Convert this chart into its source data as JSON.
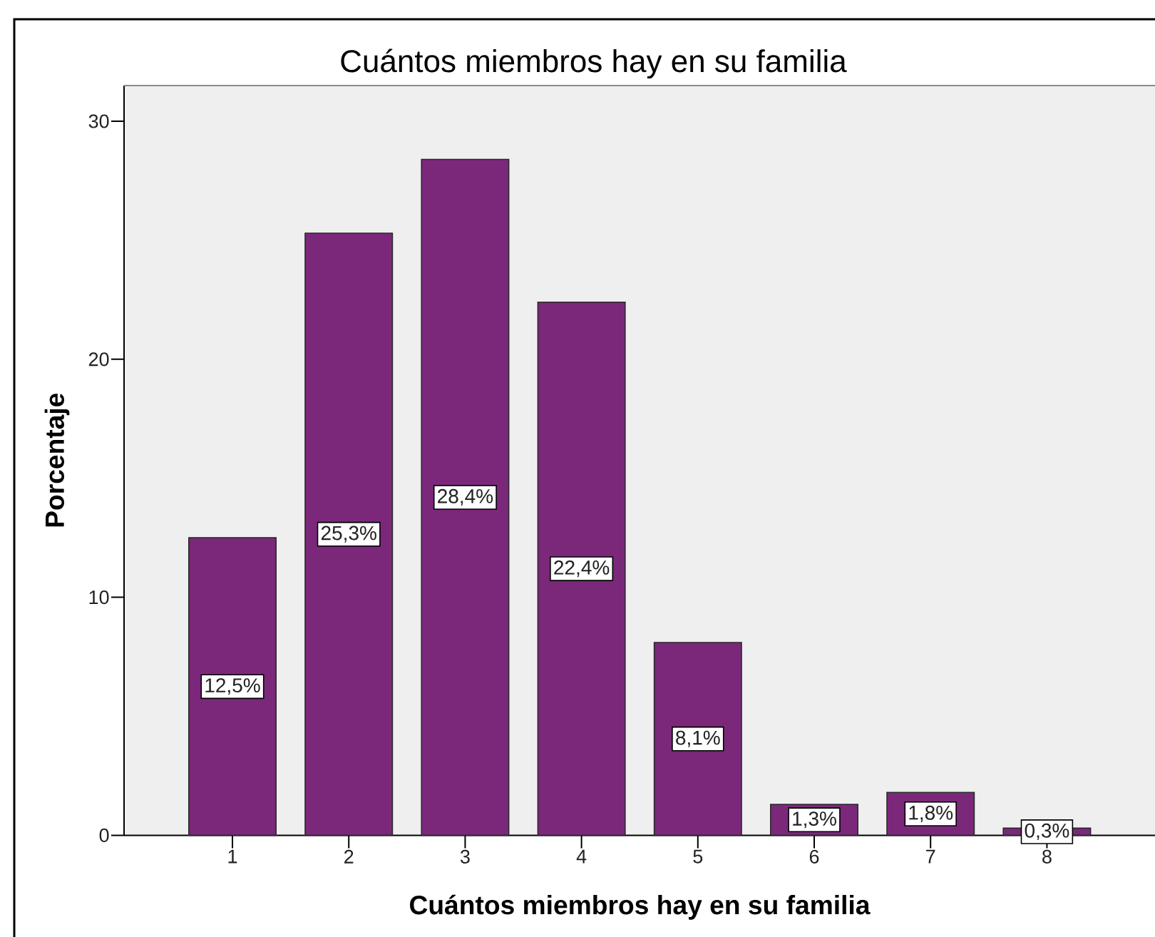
{
  "chart_data": {
    "type": "bar",
    "title": "Cuántos miembros hay en su familia",
    "xlabel": "Cuántos miembros hay en su familia",
    "ylabel": "Porcentaje",
    "categories": [
      "1",
      "2",
      "3",
      "4",
      "5",
      "6",
      "7",
      "8"
    ],
    "values": [
      12.5,
      25.3,
      28.4,
      22.4,
      8.1,
      1.3,
      1.8,
      0.3
    ],
    "value_labels": [
      "12,5%",
      "25,3%",
      "28,4%",
      "22,4%",
      "8,1%",
      "1,3%",
      "1,8%",
      "0,3%"
    ],
    "color": "#7b287b",
    "ylim": [
      0,
      31.5
    ],
    "yticks": [
      0,
      10,
      20,
      30
    ]
  }
}
